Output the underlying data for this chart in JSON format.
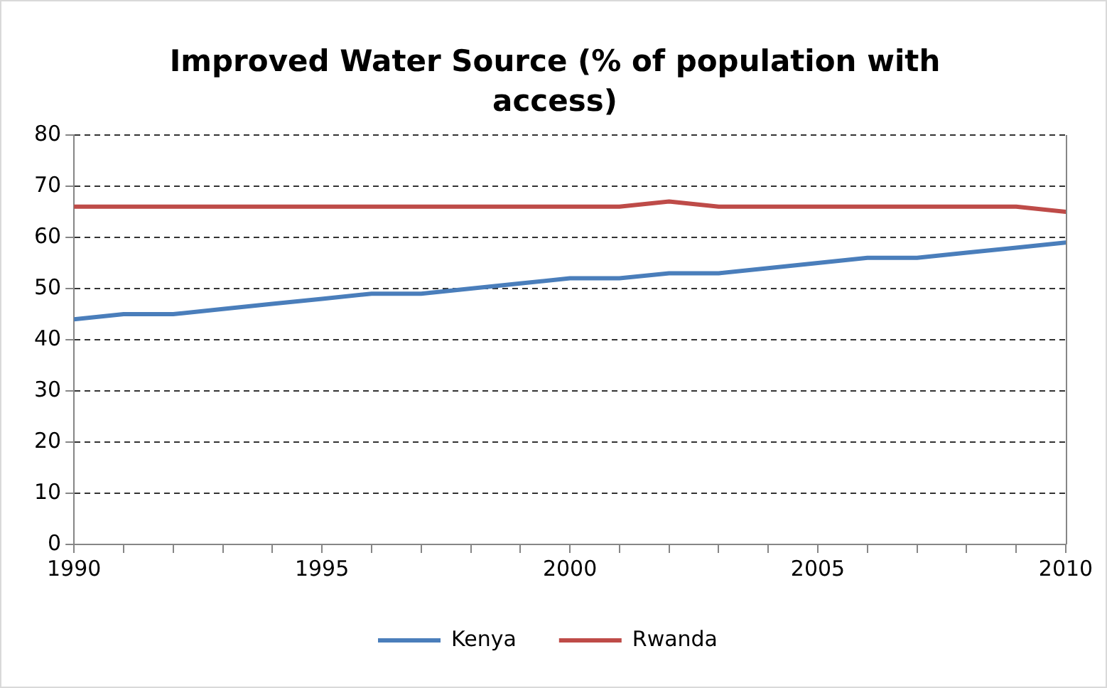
{
  "chart_data": {
    "type": "line",
    "title": "Improved Water Source (% of population with access)",
    "x": [
      1990,
      1991,
      1992,
      1993,
      1994,
      1995,
      1996,
      1997,
      1998,
      1999,
      2000,
      2001,
      2002,
      2003,
      2004,
      2005,
      2006,
      2007,
      2008,
      2009,
      2010
    ],
    "series": [
      {
        "name": "Kenya",
        "color": "#4a7ebb",
        "values": [
          44,
          45,
          45,
          46,
          47,
          48,
          49,
          49,
          50,
          51,
          52,
          52,
          53,
          53,
          54,
          55,
          56,
          56,
          57,
          58,
          59
        ]
      },
      {
        "name": "Rwanda",
        "color": "#be4b48",
        "values": [
          66,
          66,
          66,
          66,
          66,
          66,
          66,
          66,
          66,
          66,
          66,
          66,
          67,
          66,
          66,
          66,
          66,
          66,
          66,
          66,
          65
        ]
      }
    ],
    "xlim": [
      1990,
      2010
    ],
    "xticks": [
      1990,
      {
        "value": 1991,
        "label": null
      },
      {
        "value": 1992,
        "label": null
      },
      {
        "value": 1993,
        "label": null
      },
      {
        "value": 1994,
        "label": null
      },
      1995,
      {
        "value": 1996,
        "label": null
      },
      {
        "value": 1997,
        "label": null
      },
      {
        "value": 1998,
        "label": null
      },
      {
        "value": 1999,
        "label": null
      },
      2000,
      {
        "value": 2001,
        "label": null
      },
      {
        "value": 2002,
        "label": null
      },
      {
        "value": 2003,
        "label": null
      },
      {
        "value": 2004,
        "label": null
      },
      2005,
      {
        "value": 2006,
        "label": null
      },
      {
        "value": 2007,
        "label": null
      },
      {
        "value": 2008,
        "label": null
      },
      {
        "value": 2009,
        "label": null
      },
      2010
    ],
    "ylim": [
      0,
      80
    ],
    "yticks": [
      0,
      10,
      20,
      30,
      40,
      50,
      60,
      70,
      80
    ],
    "grid": "y",
    "legend": "bottom",
    "marker": "none",
    "line_style": "solid"
  }
}
